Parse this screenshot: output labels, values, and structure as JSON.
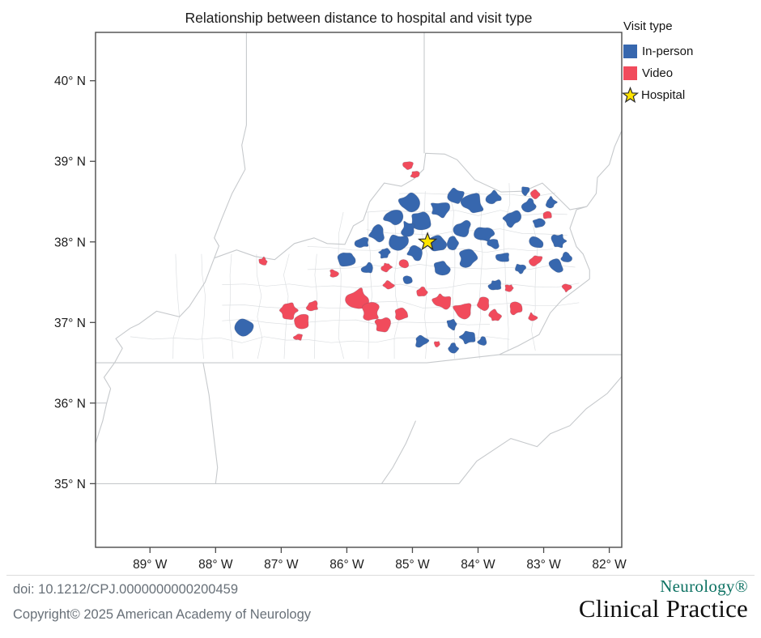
{
  "title": "Relationship between distance to hospital and visit type",
  "legend": {
    "title": "Visit type",
    "items": [
      {
        "label": "In-person",
        "type": "swatch",
        "color_key": "in_person"
      },
      {
        "label": "Video",
        "type": "swatch",
        "color_key": "video"
      },
      {
        "label": "Hospital",
        "type": "star",
        "color_key": "hospital_star"
      }
    ]
  },
  "colors": {
    "in_person": "#3767ae",
    "video": "#f14b5c",
    "hospital_star": "#ffe400",
    "state_line": "#c6c9cc",
    "county_line": "#d7dadd",
    "frame": "#4b4b4b",
    "tick_text": "#1c1c1c"
  },
  "map": {
    "extent": {
      "west": -89.83,
      "east": -81.81,
      "north": 40.6,
      "south": 34.21
    },
    "x_ticks": [
      {
        "value": -89,
        "label": "89° W"
      },
      {
        "value": -88,
        "label": "88° W"
      },
      {
        "value": -87,
        "label": "87° W"
      },
      {
        "value": -86,
        "label": "86° W"
      },
      {
        "value": -85,
        "label": "85° W"
      },
      {
        "value": -84,
        "label": "84° W"
      },
      {
        "value": -83,
        "label": "83° W"
      },
      {
        "value": -82,
        "label": "82° W"
      }
    ],
    "y_ticks": [
      {
        "value": 40,
        "label": "40° N"
      },
      {
        "value": 39,
        "label": "39° N"
      },
      {
        "value": 38,
        "label": "38° N"
      },
      {
        "value": 37,
        "label": "37° N"
      },
      {
        "value": 36,
        "label": "36° N"
      },
      {
        "value": 35,
        "label": "35° N"
      }
    ],
    "hospital": {
      "lon": -84.77,
      "lat": 38.0
    },
    "patches_format": [
      "lon",
      "lat",
      "size_px",
      "type I=in-person V=video"
    ],
    "patches": [
      [
        -87.58,
        36.9,
        13,
        "I"
      ],
      [
        -85.06,
        38.49,
        12,
        "I"
      ],
      [
        -85.3,
        38.31,
        10,
        "I"
      ],
      [
        -84.87,
        38.27,
        13,
        "I"
      ],
      [
        -84.59,
        38.41,
        11,
        "I"
      ],
      [
        -84.35,
        38.56,
        10,
        "I"
      ],
      [
        -84.07,
        38.47,
        13,
        "I"
      ],
      [
        -83.76,
        38.56,
        9,
        "I"
      ],
      [
        -84.23,
        38.16,
        10,
        "I"
      ],
      [
        -83.89,
        38.09,
        11,
        "I"
      ],
      [
        -83.49,
        38.29,
        10,
        "I"
      ],
      [
        -83.22,
        38.45,
        8,
        "I"
      ],
      [
        -83.29,
        38.63,
        6,
        "I"
      ],
      [
        -82.89,
        38.49,
        7,
        "I"
      ],
      [
        -82.78,
        38.01,
        9,
        "I"
      ],
      [
        -82.8,
        37.71,
        8,
        "I"
      ],
      [
        -83.12,
        37.99,
        8,
        "I"
      ],
      [
        -84.62,
        37.97,
        10,
        "I"
      ],
      [
        -84.95,
        37.87,
        9,
        "I"
      ],
      [
        -85.22,
        37.99,
        11,
        "I"
      ],
      [
        -85.54,
        38.11,
        10,
        "I"
      ],
      [
        -85.77,
        37.99,
        8,
        "I"
      ],
      [
        -85.98,
        37.79,
        10,
        "I"
      ],
      [
        -85.67,
        37.67,
        8,
        "I"
      ],
      [
        -84.56,
        37.67,
        9,
        "I"
      ],
      [
        -84.16,
        37.79,
        10,
        "I"
      ],
      [
        -83.61,
        37.81,
        8,
        "I"
      ],
      [
        -83.36,
        37.67,
        6,
        "I"
      ],
      [
        -84.87,
        36.78,
        8,
        "I"
      ],
      [
        -84.4,
        36.98,
        8,
        "I"
      ],
      [
        -84.16,
        36.82,
        10,
        "I"
      ],
      [
        -83.92,
        36.76,
        6,
        "I"
      ],
      [
        -83.74,
        37.46,
        7,
        "I"
      ],
      [
        -84.38,
        37.99,
        8,
        "I"
      ],
      [
        -85.06,
        38.17,
        9,
        "I"
      ],
      [
        -85.43,
        37.87,
        7,
        "I"
      ],
      [
        -83.76,
        37.99,
        7,
        "I"
      ],
      [
        -83.08,
        38.24,
        7,
        "I"
      ],
      [
        -82.65,
        37.81,
        6,
        "I"
      ],
      [
        -85.06,
        37.54,
        6,
        "I"
      ],
      [
        -84.38,
        36.68,
        6,
        "I"
      ],
      [
        -87.27,
        37.76,
        5,
        "V"
      ],
      [
        -86.9,
        37.15,
        11,
        "V"
      ],
      [
        -86.7,
        37.02,
        9,
        "V"
      ],
      [
        -86.52,
        37.2,
        7,
        "V"
      ],
      [
        -86.74,
        36.82,
        5,
        "V"
      ],
      [
        -85.86,
        37.3,
        13,
        "V"
      ],
      [
        -85.64,
        37.12,
        11,
        "V"
      ],
      [
        -85.46,
        36.98,
        9,
        "V"
      ],
      [
        -85.15,
        37.1,
        8,
        "V"
      ],
      [
        -85.06,
        38.94,
        7,
        "V"
      ],
      [
        -84.96,
        38.83,
        5,
        "V"
      ],
      [
        -84.56,
        37.26,
        10,
        "V"
      ],
      [
        -84.23,
        37.16,
        11,
        "V"
      ],
      [
        -83.92,
        37.24,
        9,
        "V"
      ],
      [
        -83.74,
        37.08,
        8,
        "V"
      ],
      [
        -83.44,
        37.18,
        8,
        "V"
      ],
      [
        -83.18,
        37.06,
        6,
        "V"
      ],
      [
        -83.11,
        37.77,
        7,
        "V"
      ],
      [
        -85.12,
        37.74,
        6,
        "V"
      ],
      [
        -85.39,
        37.69,
        6,
        "V"
      ],
      [
        -84.62,
        36.73,
        4,
        "V"
      ],
      [
        -83.14,
        38.59,
        6,
        "V"
      ],
      [
        -82.95,
        38.34,
        6,
        "V"
      ],
      [
        -82.65,
        37.43,
        5,
        "V"
      ],
      [
        -84.85,
        37.38,
        6,
        "V"
      ],
      [
        -86.2,
        37.61,
        5,
        "V"
      ],
      [
        -83.52,
        37.43,
        5,
        "V"
      ],
      [
        -85.36,
        37.46,
        6,
        "V"
      ]
    ],
    "state_borders": [
      [
        [
          -89.83,
          36.5
        ],
        [
          -84.78,
          36.5
        ],
        [
          -83.68,
          36.6
        ],
        [
          -81.81,
          36.6
        ]
      ],
      [
        [
          -89.83,
          35.0
        ],
        [
          -84.29,
          35.0
        ]
      ],
      [
        [
          -84.29,
          35.0
        ],
        [
          -84.02,
          35.28
        ],
        [
          -83.5,
          35.56
        ],
        [
          -83.1,
          35.46
        ],
        [
          -82.9,
          35.62
        ],
        [
          -82.6,
          35.72
        ],
        [
          -82.35,
          35.93
        ],
        [
          -82.03,
          36.12
        ],
        [
          -81.81,
          36.33
        ]
      ],
      [
        [
          -89.83,
          36.0
        ],
        [
          -89.66,
          36.0
        ]
      ],
      [
        [
          -89.66,
          36.0
        ],
        [
          -89.6,
          36.18
        ],
        [
          -89.7,
          36.32
        ],
        [
          -89.54,
          36.5
        ],
        [
          -89.42,
          36.68
        ],
        [
          -89.52,
          36.8
        ],
        [
          -89.3,
          36.93
        ],
        [
          -89.17,
          36.98
        ]
      ],
      [
        [
          -89.66,
          36.0
        ],
        [
          -89.72,
          35.78
        ],
        [
          -89.83,
          35.5
        ]
      ],
      [
        [
          -89.17,
          36.98
        ],
        [
          -88.9,
          37.14
        ],
        [
          -88.55,
          37.07
        ],
        [
          -88.4,
          37.2
        ],
        [
          -88.16,
          37.5
        ],
        [
          -88.02,
          37.8
        ]
      ],
      [
        [
          -87.53,
          40.6
        ],
        [
          -87.53,
          39.45
        ],
        [
          -87.6,
          39.2
        ],
        [
          -87.55,
          38.9
        ],
        [
          -87.75,
          38.6
        ],
        [
          -87.9,
          38.3
        ],
        [
          -88.02,
          38.05
        ],
        [
          -87.95,
          37.95
        ],
        [
          -88.02,
          37.8
        ]
      ],
      [
        [
          -88.02,
          37.8
        ],
        [
          -87.68,
          37.9
        ],
        [
          -87.4,
          37.82
        ],
        [
          -87.1,
          37.78
        ],
        [
          -86.8,
          37.98
        ],
        [
          -86.5,
          38.05
        ],
        [
          -86.3,
          37.98
        ],
        [
          -86.03,
          37.97
        ],
        [
          -85.9,
          38.2
        ],
        [
          -85.75,
          38.27
        ],
        [
          -85.65,
          38.5
        ],
        [
          -85.43,
          38.73
        ],
        [
          -85.17,
          38.69
        ],
        [
          -84.98,
          38.78
        ],
        [
          -84.83,
          38.9
        ],
        [
          -84.8,
          39.1
        ],
        [
          -84.51,
          39.09
        ],
        [
          -84.32,
          39.02
        ],
        [
          -84.05,
          38.77
        ],
        [
          -83.65,
          38.62
        ],
        [
          -83.3,
          38.63
        ],
        [
          -83.02,
          38.73
        ],
        [
          -82.8,
          38.56
        ],
        [
          -82.6,
          38.4
        ],
        [
          -82.34,
          38.44
        ]
      ],
      [
        [
          -84.82,
          40.6
        ],
        [
          -84.82,
          39.1
        ]
      ],
      [
        [
          -82.34,
          38.44
        ],
        [
          -82.5,
          38.4
        ],
        [
          -82.6,
          38.17
        ],
        [
          -82.5,
          37.94
        ],
        [
          -82.4,
          37.85
        ],
        [
          -82.3,
          37.65
        ],
        [
          -82.3,
          37.54
        ]
      ],
      [
        [
          -82.3,
          37.54
        ],
        [
          -82.72,
          37.28
        ],
        [
          -82.9,
          37.12
        ],
        [
          -83.07,
          36.85
        ],
        [
          -83.39,
          36.71
        ],
        [
          -83.68,
          36.6
        ]
      ],
      [
        [
          -82.34,
          38.44
        ],
        [
          -82.2,
          38.6
        ],
        [
          -82.18,
          38.8
        ],
        [
          -82.0,
          38.96
        ],
        [
          -81.92,
          39.18
        ],
        [
          -81.81,
          39.38
        ]
      ],
      [
        [
          -88.19,
          36.5
        ],
        [
          -88.1,
          36.1
        ],
        [
          -88.03,
          35.6
        ],
        [
          -87.97,
          35.2
        ],
        [
          -88.0,
          35.0
        ]
      ],
      [
        [
          -84.95,
          35.78
        ],
        [
          -85.1,
          35.5
        ],
        [
          -85.3,
          35.2
        ],
        [
          -85.47,
          35.0
        ]
      ]
    ]
  },
  "footer": {
    "doi": "doi: 10.1212/CPJ.0000000000200459",
    "copyright": "Copyright© 2025 American Academy of Neurology",
    "journal": {
      "name": "Neurology®",
      "subname": "Clinical Practice"
    }
  }
}
